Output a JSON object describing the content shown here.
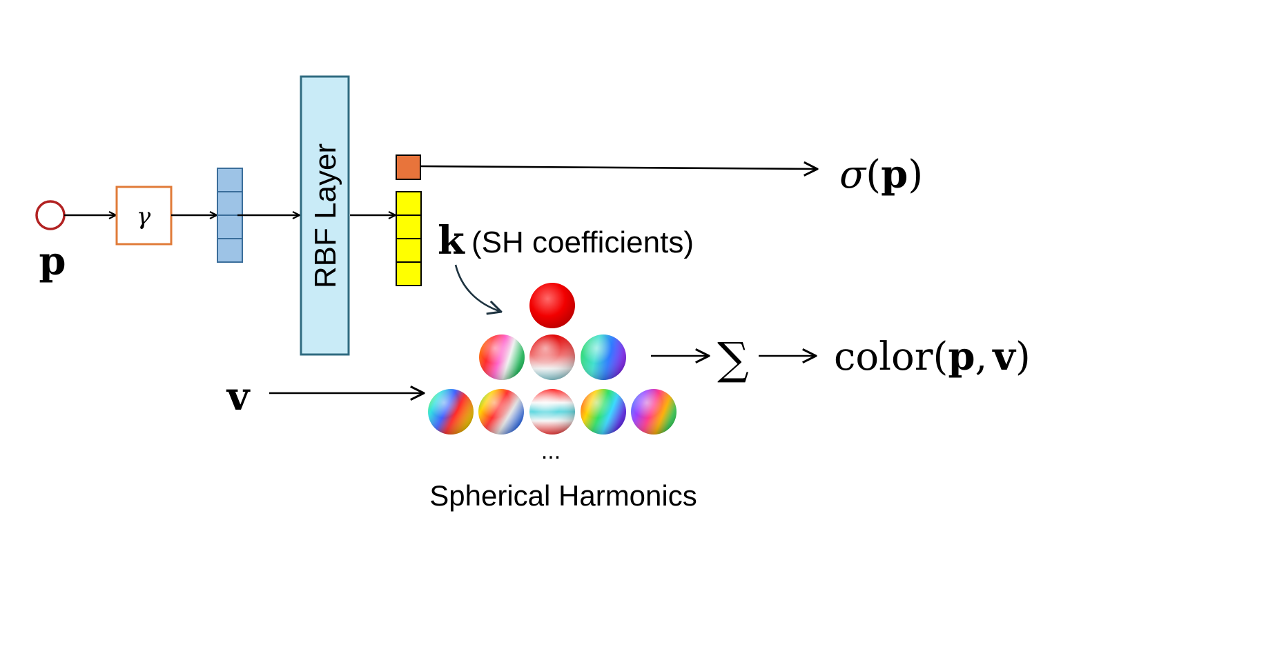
{
  "inputs": {
    "position_symbol": "p",
    "view_symbol": "v"
  },
  "encoding": {
    "symbol": "γ"
  },
  "rbf_layer": {
    "label": "RBF Layer"
  },
  "outputs": {
    "density": {
      "prefix": "σ(",
      "arg": "p",
      "suffix": ")"
    },
    "sh_coefficients": {
      "symbol": "k",
      "caption": "(SH coefficients)"
    },
    "sum_symbol": "∑",
    "color": {
      "prefix": "color(",
      "arg1": "p",
      "sep": ",",
      "arg2": "v",
      "suffix": ")"
    }
  },
  "spherical_harmonics": {
    "ellipsis": "...",
    "caption": "Spherical Harmonics"
  },
  "colors": {
    "input_circle": "#b22222",
    "encoding_box": "#e07b39",
    "feature_vector": "#9dc3e6",
    "feature_border": "#3a6d9a",
    "rbf_fill": "#c9ebf7",
    "rbf_border": "#2f6b80",
    "density_cell": "#e8743b",
    "sh_cell": "#ffff00",
    "arrow": "#000000",
    "curved_arrow": "#1e3340"
  }
}
